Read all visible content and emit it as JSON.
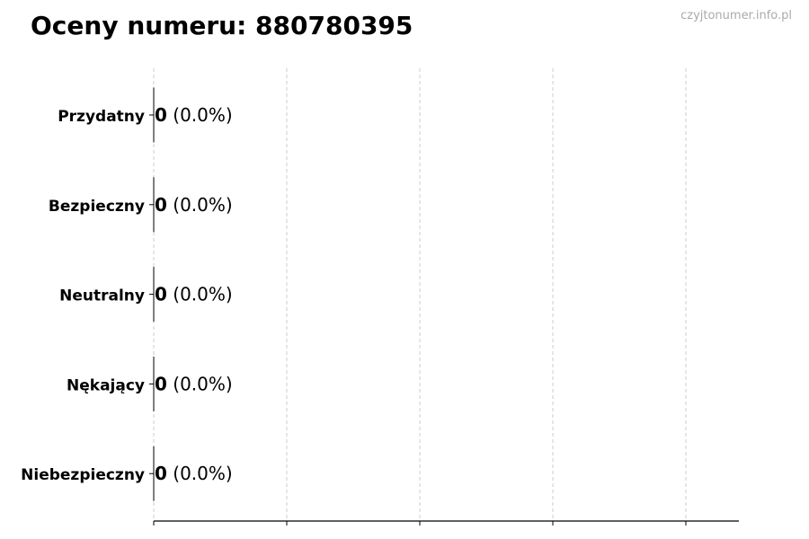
{
  "title": "Oceny numeru: 880780395",
  "watermark": "czyjtonumer.info.pl",
  "chart_data": {
    "type": "bar",
    "orientation": "horizontal",
    "categories": [
      "Przydatny",
      "Bezpieczny",
      "Neutralny",
      "Nękający",
      "Niebezpieczny"
    ],
    "values": [
      0,
      0,
      0,
      0,
      0
    ],
    "labels": [
      "(0.0%)",
      "(0.0%)",
      "(0.0%)",
      "(0.0%)",
      "(0.0%)"
    ],
    "grid": "vertical dashed",
    "colors": {
      "grid": "#cccccc",
      "axis": "#000000",
      "bar_edge": "#000000"
    }
  }
}
